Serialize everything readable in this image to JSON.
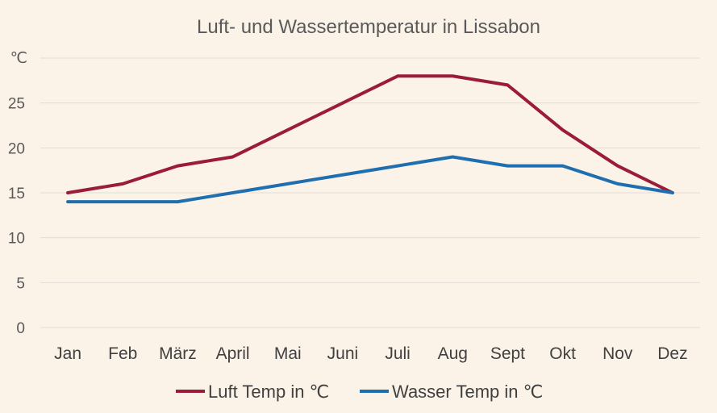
{
  "chart_data": {
    "type": "line",
    "title": "Luft- und Wassertemperatur in Lissabon",
    "ylabel": "℃",
    "xlabel": "",
    "categories": [
      "Jan",
      "Feb",
      "März",
      "April",
      "Mai",
      "Juni",
      "Juli",
      "Aug",
      "Sept",
      "Okt",
      "Nov",
      "Dez"
    ],
    "ylim": [
      0,
      30
    ],
    "yticks": [
      0,
      5,
      10,
      15,
      20,
      25
    ],
    "grid": true,
    "legend_position": "bottom",
    "series": [
      {
        "name": "Luft Temp in ℃",
        "color": "#9b1b3a",
        "values": [
          15,
          16,
          18,
          19,
          22,
          25,
          28,
          28,
          27,
          22,
          18,
          15
        ]
      },
      {
        "name": "Wasser Temp in ℃",
        "color": "#1f6fb0",
        "values": [
          14,
          14,
          14,
          15,
          16,
          17,
          18,
          19,
          18,
          18,
          16,
          15
        ]
      }
    ]
  }
}
